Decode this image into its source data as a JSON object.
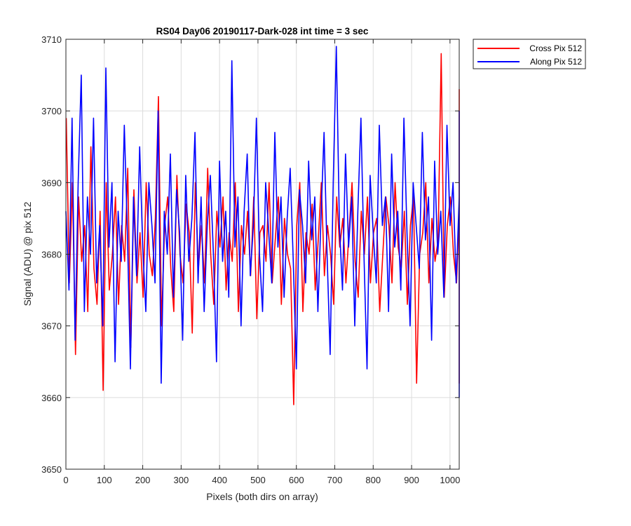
{
  "chart_data": {
    "type": "line",
    "title": "RS04 Day06 20190117-Dark-028 int time = 3 sec",
    "xlabel": "Pixels (both dirs on array)",
    "ylabel": "Signal (ADU) @ pix 512",
    "xlim": [
      0,
      1024
    ],
    "ylim": [
      3650,
      3710
    ],
    "xticks": [
      0,
      100,
      200,
      300,
      400,
      500,
      600,
      700,
      800,
      900,
      1000
    ],
    "yticks": [
      3650,
      3660,
      3670,
      3680,
      3690,
      3700,
      3710
    ],
    "grid": true,
    "legend_position": "outside-top-right",
    "series": [
      {
        "name": "Cross Pix 512",
        "color": "#ff0000",
        "x_start": 1,
        "x_step": 8,
        "values": [
          3699,
          3676,
          3690,
          3666,
          3688,
          3679,
          3684,
          3672,
          3695,
          3678,
          3673,
          3686,
          3661,
          3690,
          3675,
          3680,
          3688,
          3673,
          3684,
          3679,
          3692,
          3667,
          3689,
          3676,
          3683,
          3674,
          3690,
          3680,
          3677,
          3685,
          3702,
          3670,
          3684,
          3688,
          3678,
          3672,
          3691,
          3680,
          3676,
          3687,
          3683,
          3669,
          3690,
          3678,
          3684,
          3676,
          3692,
          3680,
          3673,
          3686,
          3681,
          3688,
          3675,
          3683,
          3679,
          3690,
          3672,
          3684,
          3680,
          3686,
          3677,
          3688,
          3671,
          3683,
          3684,
          3679,
          3690,
          3676,
          3682,
          3688,
          3673,
          3685,
          3680,
          3678,
          3659,
          3684,
          3690,
          3672,
          3683,
          3680,
          3687,
          3675,
          3682,
          3690,
          3677,
          3684,
          3680,
          3673,
          3688,
          3681,
          3685,
          3676,
          3683,
          3690,
          3679,
          3674,
          3686,
          3680,
          3688,
          3676,
          3683,
          3685,
          3672,
          3680,
          3688,
          3684,
          3676,
          3690,
          3681,
          3678,
          3686,
          3673,
          3684,
          3688,
          3662,
          3680,
          3683,
          3690,
          3676,
          3685,
          3679,
          3682,
          3708,
          3674,
          3684,
          3688,
          3680,
          3676,
          3686,
          3683,
          3670,
          3688,
          3680,
          3684,
          3677,
          3685,
          3690,
          3676,
          3682,
          3688,
          3703,
          3680,
          3673,
          3684,
          3687,
          3679,
          3683,
          3690,
          3676,
          3685,
          3680,
          3688,
          3673,
          3684,
          3680,
          3681,
          3686,
          3677,
          3684,
          3688,
          3680,
          3676,
          3683,
          3702,
          3679,
          3685,
          3680,
          3688,
          3672,
          3683,
          3686,
          3680,
          3676,
          3688,
          3684,
          3679,
          3690,
          3676,
          3682,
          3685,
          3680,
          3688,
          3674,
          3683,
          3680,
          3686,
          3677,
          3684,
          3688,
          3680,
          3700,
          3676,
          3683,
          3685,
          3680,
          3688,
          3676,
          3684,
          3680,
          3682,
          3662,
          3678,
          3686,
          3680,
          3684,
          3688,
          3676,
          3683,
          3680,
          3690,
          3676,
          3684,
          3688,
          3680,
          3682,
          3686,
          3673,
          3685,
          3680,
          3688,
          3676,
          3684,
          3690,
          3680,
          3683,
          3678,
          3686,
          3680,
          3684,
          3688,
          3676,
          3683,
          3680,
          3686,
          3679,
          3684,
          3688,
          3680,
          3676,
          3683,
          3690,
          3680,
          3684,
          3686,
          3676,
          3702,
          3680,
          3688,
          3683,
          3679,
          3686,
          3680,
          3684,
          3676,
          3688,
          3680,
          3683,
          3686,
          3679,
          3684,
          3690,
          3680,
          3676,
          3683,
          3688,
          3680,
          3684,
          3686,
          3679,
          3683,
          3688,
          3680,
          3676,
          3684,
          3702,
          3680,
          3683,
          3686,
          3676,
          3688,
          3684,
          3680,
          3683,
          3686,
          3690,
          3680,
          3684,
          3676,
          3688,
          3682,
          3686,
          3680,
          3684,
          3690,
          3676,
          3683,
          3688,
          3680,
          3684,
          3686,
          3679,
          3683,
          3690,
          3680,
          3684,
          3676,
          3688,
          3683,
          3686,
          3680,
          3684,
          3688,
          3676,
          3683,
          3680,
          3686,
          3684,
          3680,
          3688,
          3676,
          3683,
          3686,
          3680,
          3684,
          3690,
          3680,
          3683,
          3686,
          3676,
          3688,
          3684,
          3680,
          3683,
          3686,
          3680,
          3684,
          3688,
          3676,
          3683,
          3680,
          3686,
          3684,
          3680,
          3688,
          3676,
          3683,
          3686,
          3680,
          3684,
          3688,
          3680,
          3683,
          3686,
          3680,
          3684,
          3688,
          3680,
          3683,
          3686,
          3680,
          3684,
          3688,
          3680,
          3683,
          3686,
          3680,
          3684,
          3688,
          3680,
          3683,
          3686,
          3680,
          3684,
          3688,
          3680,
          3683,
          3686,
          3680,
          3684,
          3688,
          3680,
          3683,
          3686,
          3680,
          3684,
          3688,
          3680,
          3683,
          3686,
          3680,
          3684,
          3688,
          3680,
          3683,
          3686,
          3680,
          3684,
          3688,
          3680,
          3683,
          3686,
          3680,
          3684,
          3688,
          3680,
          3683,
          3686,
          3680,
          3684,
          3688,
          3680,
          3683,
          3686,
          3680,
          3684,
          3688,
          3680,
          3683,
          3686,
          3680,
          3684,
          3688,
          3680,
          3683,
          3686,
          3680,
          3684,
          3688,
          3680,
          3683,
          3686,
          3680,
          3684,
          3688,
          3680,
          3683,
          3686,
          3680,
          3684,
          3688,
          3680,
          3683,
          3686,
          3680,
          3684,
          3688,
          3680,
          3683,
          3686,
          3680,
          3684,
          3688,
          3680,
          3683,
          3686,
          3680,
          3684,
          3688,
          3680,
          3683,
          3686,
          3680,
          3684,
          3688,
          3680,
          3683,
          3686,
          3680,
          3684,
          3688,
          3680,
          3683,
          3686,
          3680,
          3684,
          3688,
          3680,
          3683,
          3686,
          3680,
          3684,
          3688,
          3680,
          3683,
          3686,
          3680,
          3684,
          3688,
          3680,
          3683,
          3686,
          3680,
          3684,
          3688,
          3680,
          3683,
          3686,
          3680,
          3684,
          3688,
          3680,
          3683,
          3686,
          3680,
          3684,
          3688,
          3680,
          3683,
          3686,
          3680,
          3684,
          3688,
          3680,
          3683,
          3686,
          3680,
          3684,
          3688,
          3680,
          3683,
          3686,
          3680,
          3684,
          3688
        ]
      },
      {
        "name": "Along Pix 512",
        "color": "#0000ff",
        "x_start": 0,
        "x_step": 8,
        "values": [
          3686,
          3675,
          3699,
          3668,
          3690,
          3705,
          3672,
          3688,
          3680,
          3699,
          3676,
          3684,
          3670,
          3706,
          3681,
          3690,
          3665,
          3686,
          3679,
          3698,
          3683,
          3664,
          3688,
          3677,
          3695,
          3681,
          3672,
          3690,
          3684,
          3676,
          3700,
          3662,
          3686,
          3680,
          3694,
          3674,
          3689,
          3683,
          3668,
          3691,
          3679,
          3685,
          3697,
          3676,
          3688,
          3672,
          3684,
          3691,
          3680,
          3665,
          3693,
          3679,
          3686,
          3674,
          3707,
          3681,
          3688,
          3670,
          3686,
          3694,
          3677,
          3684,
          3699,
          3680,
          3672,
          3690,
          3683,
          3676,
          3697,
          3681,
          3688,
          3674,
          3685,
          3692,
          3679,
          3664,
          3689,
          3684,
          3676,
          3693,
          3682,
          3688,
          3672,
          3685,
          3697,
          3680,
          3666,
          3690,
          3709,
          3684,
          3675,
          3694,
          3681,
          3688,
          3670,
          3686,
          3699,
          3680,
          3664,
          3691,
          3683,
          3676,
          3698,
          3684,
          3688,
          3672,
          3694,
          3681,
          3686,
          3675,
          3699,
          3683,
          3670,
          3690,
          3684,
          3678,
          3697,
          3682,
          3688,
          3668,
          3693,
          3680,
          3686,
          3674,
          3698,
          3684,
          3690,
          3676,
          3688,
          3695,
          3680,
          3672,
          3691,
          3684,
          3666,
          3697,
          3683,
          3688,
          3676,
          3694,
          3681,
          3685,
          3699,
          3672,
          3690,
          3684,
          3676,
          3697,
          3681,
          3688,
          3670,
          3693,
          3684,
          3698,
          3676,
          3686,
          3690,
          3679,
          3665,
          3694,
          3684,
          3688,
          3672,
          3697,
          3681,
          3686,
          3676,
          3699,
          3683,
          3688,
          3670,
          3694,
          3680,
          3686,
          3666,
          3697,
          3684,
          3690,
          3676,
          3694,
          3681,
          3688,
          3672,
          3699,
          3684,
          3686,
          3676,
          3697,
          3683,
          3690,
          3670,
          3694,
          3681,
          3688,
          3668,
          3699,
          3684,
          3686,
          3672,
          3697,
          3683,
          3690,
          3676,
          3694,
          3680,
          3688,
          3670,
          3699,
          3684,
          3686,
          3676,
          3700,
          3683,
          3660,
          3690,
          3672,
          3697,
          3681,
          3688,
          3664,
          3694,
          3684,
          3689,
          3676
        ]
      }
    ]
  }
}
